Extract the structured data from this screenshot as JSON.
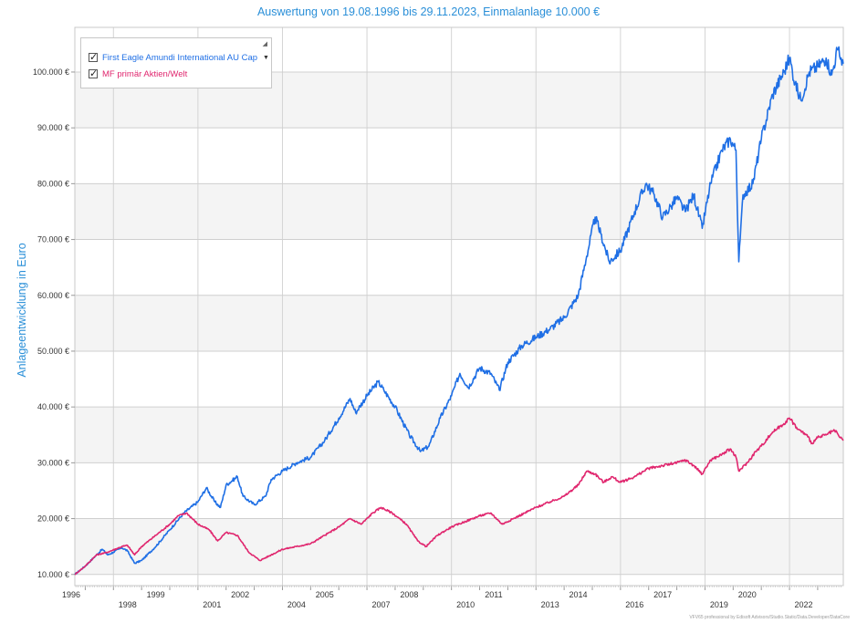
{
  "chart_data": {
    "type": "line",
    "title": "Auswertung von 19.08.1996 bis 29.11.2023, Einmalanlage 10.000 €",
    "xlabel": "",
    "ylabel": "Anlageentwicklung  in Euro",
    "xlim": [
      1996.63,
      2023.91
    ],
    "ylim": [
      8000,
      108000
    ],
    "y_ticks": [
      10000,
      20000,
      30000,
      40000,
      50000,
      60000,
      70000,
      80000,
      90000,
      100000
    ],
    "y_tick_labels": [
      "10.000 €",
      "20.000 €",
      "30.000 €",
      "40.000 €",
      "50.000 €",
      "60.000 €",
      "70.000 €",
      "80.000 €",
      "90.000 €",
      "100.000 €"
    ],
    "x_tick_labels": [
      {
        "year": 1996,
        "row": 1,
        "label": "1996"
      },
      {
        "year": 1998,
        "row": 2,
        "label": "1998"
      },
      {
        "year": 1999,
        "row": 1,
        "label": "1999"
      },
      {
        "year": 2001,
        "row": 2,
        "label": "2001"
      },
      {
        "year": 2002,
        "row": 1,
        "label": "2002"
      },
      {
        "year": 2004,
        "row": 2,
        "label": "2004"
      },
      {
        "year": 2005,
        "row": 1,
        "label": "2005"
      },
      {
        "year": 2007,
        "row": 2,
        "label": "2007"
      },
      {
        "year": 2008,
        "row": 1,
        "label": "2008"
      },
      {
        "year": 2010,
        "row": 2,
        "label": "2010"
      },
      {
        "year": 2011,
        "row": 1,
        "label": "2011"
      },
      {
        "year": 2013,
        "row": 2,
        "label": "2013"
      },
      {
        "year": 2014,
        "row": 1,
        "label": "2014"
      },
      {
        "year": 2016,
        "row": 2,
        "label": "2016"
      },
      {
        "year": 2017,
        "row": 1,
        "label": "2017"
      },
      {
        "year": 2019,
        "row": 2,
        "label": "2019"
      },
      {
        "year": 2020,
        "row": 1,
        "label": "2020"
      },
      {
        "year": 2022,
        "row": 2,
        "label": "2022"
      }
    ],
    "grid": true,
    "legend_position": "top-left",
    "series": [
      {
        "name": "First Eagle Amundi International AU Cap",
        "color": "#1f6fe5",
        "points": [
          [
            1996.63,
            10000
          ],
          [
            1997.0,
            11500
          ],
          [
            1997.3,
            13000
          ],
          [
            1997.6,
            14500
          ],
          [
            1997.8,
            13500
          ],
          [
            1998.0,
            14000
          ],
          [
            1998.3,
            14800
          ],
          [
            1998.5,
            14200
          ],
          [
            1998.75,
            12000
          ],
          [
            1999.0,
            12500
          ],
          [
            1999.5,
            15000
          ],
          [
            2000.0,
            18000
          ],
          [
            2000.5,
            21000
          ],
          [
            2001.0,
            23000
          ],
          [
            2001.3,
            25500
          ],
          [
            2001.6,
            23000
          ],
          [
            2001.8,
            22000
          ],
          [
            2002.0,
            26000
          ],
          [
            2002.4,
            27500
          ],
          [
            2002.6,
            24000
          ],
          [
            2003.0,
            22500
          ],
          [
            2003.4,
            24000
          ],
          [
            2003.6,
            27000
          ],
          [
            2004.0,
            28500
          ],
          [
            2004.5,
            30000
          ],
          [
            2005.0,
            31000
          ],
          [
            2005.5,
            34000
          ],
          [
            2006.0,
            38000
          ],
          [
            2006.4,
            41500
          ],
          [
            2006.6,
            39000
          ],
          [
            2007.0,
            42000
          ],
          [
            2007.4,
            44500
          ],
          [
            2007.6,
            43000
          ],
          [
            2008.0,
            40000
          ],
          [
            2008.5,
            35000
          ],
          [
            2008.9,
            32000
          ],
          [
            2009.2,
            33000
          ],
          [
            2009.6,
            38000
          ],
          [
            2010.0,
            42000
          ],
          [
            2010.3,
            46000
          ],
          [
            2010.6,
            43500
          ],
          [
            2011.0,
            47000
          ],
          [
            2011.4,
            46000
          ],
          [
            2011.7,
            43000
          ],
          [
            2012.0,
            48000
          ],
          [
            2012.5,
            51000
          ],
          [
            2013.0,
            52500
          ],
          [
            2013.5,
            54000
          ],
          [
            2014.0,
            56000
          ],
          [
            2014.5,
            60000
          ],
          [
            2014.8,
            67000
          ],
          [
            2015.1,
            74000
          ],
          [
            2015.3,
            71000
          ],
          [
            2015.6,
            66000
          ],
          [
            2016.0,
            68000
          ],
          [
            2016.5,
            75000
          ],
          [
            2016.9,
            80000
          ],
          [
            2017.2,
            78000
          ],
          [
            2017.5,
            74000
          ],
          [
            2017.8,
            76000
          ],
          [
            2018.0,
            77500
          ],
          [
            2018.3,
            75000
          ],
          [
            2018.6,
            78000
          ],
          [
            2018.9,
            72000
          ],
          [
            2019.2,
            80000
          ],
          [
            2019.6,
            86000
          ],
          [
            2019.9,
            88000
          ],
          [
            2020.1,
            86000
          ],
          [
            2020.2,
            66000
          ],
          [
            2020.35,
            78000
          ],
          [
            2020.7,
            80000
          ],
          [
            2021.0,
            88000
          ],
          [
            2021.4,
            96000
          ],
          [
            2021.8,
            100000
          ],
          [
            2022.0,
            102500
          ],
          [
            2022.2,
            98000
          ],
          [
            2022.4,
            95000
          ],
          [
            2022.7,
            100000
          ],
          [
            2023.0,
            101000
          ],
          [
            2023.3,
            102500
          ],
          [
            2023.5,
            99500
          ],
          [
            2023.7,
            104000
          ],
          [
            2023.91,
            101500
          ]
        ]
      },
      {
        "name": "MF primär Aktien/Welt",
        "color": "#e0266e",
        "points": [
          [
            1996.63,
            10000
          ],
          [
            1997.0,
            11500
          ],
          [
            1997.4,
            13500
          ],
          [
            1997.8,
            14000
          ],
          [
            1998.3,
            15000
          ],
          [
            1998.5,
            15200
          ],
          [
            1998.75,
            13500
          ],
          [
            1999.0,
            15000
          ],
          [
            1999.5,
            17000
          ],
          [
            2000.0,
            19000
          ],
          [
            2000.3,
            20500
          ],
          [
            2000.6,
            21000
          ],
          [
            2001.0,
            19000
          ],
          [
            2001.4,
            18000
          ],
          [
            2001.7,
            16000
          ],
          [
            2002.0,
            17500
          ],
          [
            2002.4,
            17000
          ],
          [
            2002.8,
            14000
          ],
          [
            2003.2,
            12500
          ],
          [
            2003.6,
            13500
          ],
          [
            2004.0,
            14500
          ],
          [
            2004.5,
            15000
          ],
          [
            2005.0,
            15500
          ],
          [
            2005.5,
            17000
          ],
          [
            2006.0,
            18500
          ],
          [
            2006.4,
            20000
          ],
          [
            2006.8,
            19000
          ],
          [
            2007.2,
            21000
          ],
          [
            2007.5,
            22000
          ],
          [
            2007.9,
            21000
          ],
          [
            2008.4,
            19000
          ],
          [
            2008.8,
            16000
          ],
          [
            2009.1,
            15000
          ],
          [
            2009.5,
            17000
          ],
          [
            2010.0,
            18500
          ],
          [
            2010.5,
            19500
          ],
          [
            2011.0,
            20500
          ],
          [
            2011.4,
            21000
          ],
          [
            2011.8,
            19000
          ],
          [
            2012.2,
            20000
          ],
          [
            2012.6,
            21000
          ],
          [
            2013.0,
            22000
          ],
          [
            2013.5,
            23000
          ],
          [
            2014.0,
            24000
          ],
          [
            2014.5,
            26000
          ],
          [
            2014.8,
            28500
          ],
          [
            2015.1,
            28000
          ],
          [
            2015.4,
            26500
          ],
          [
            2015.7,
            27500
          ],
          [
            2016.0,
            26500
          ],
          [
            2016.5,
            27500
          ],
          [
            2017.0,
            29000
          ],
          [
            2017.5,
            29500
          ],
          [
            2018.0,
            30000
          ],
          [
            2018.3,
            30500
          ],
          [
            2018.6,
            29500
          ],
          [
            2018.9,
            28000
          ],
          [
            2019.2,
            30500
          ],
          [
            2019.6,
            31500
          ],
          [
            2019.9,
            32500
          ],
          [
            2020.1,
            31000
          ],
          [
            2020.2,
            28500
          ],
          [
            2020.5,
            30000
          ],
          [
            2020.8,
            32000
          ],
          [
            2021.0,
            33000
          ],
          [
            2021.4,
            35500
          ],
          [
            2021.8,
            37000
          ],
          [
            2022.0,
            38000
          ],
          [
            2022.3,
            36000
          ],
          [
            2022.6,
            35000
          ],
          [
            2022.8,
            33500
          ],
          [
            2023.0,
            34500
          ],
          [
            2023.3,
            35000
          ],
          [
            2023.6,
            35800
          ],
          [
            2023.8,
            34500
          ],
          [
            2023.91,
            34000
          ]
        ]
      }
    ]
  },
  "footer": "VFV65 professional by Edisoft Advisors/Studio.Static/Data.Developer/DataCore"
}
